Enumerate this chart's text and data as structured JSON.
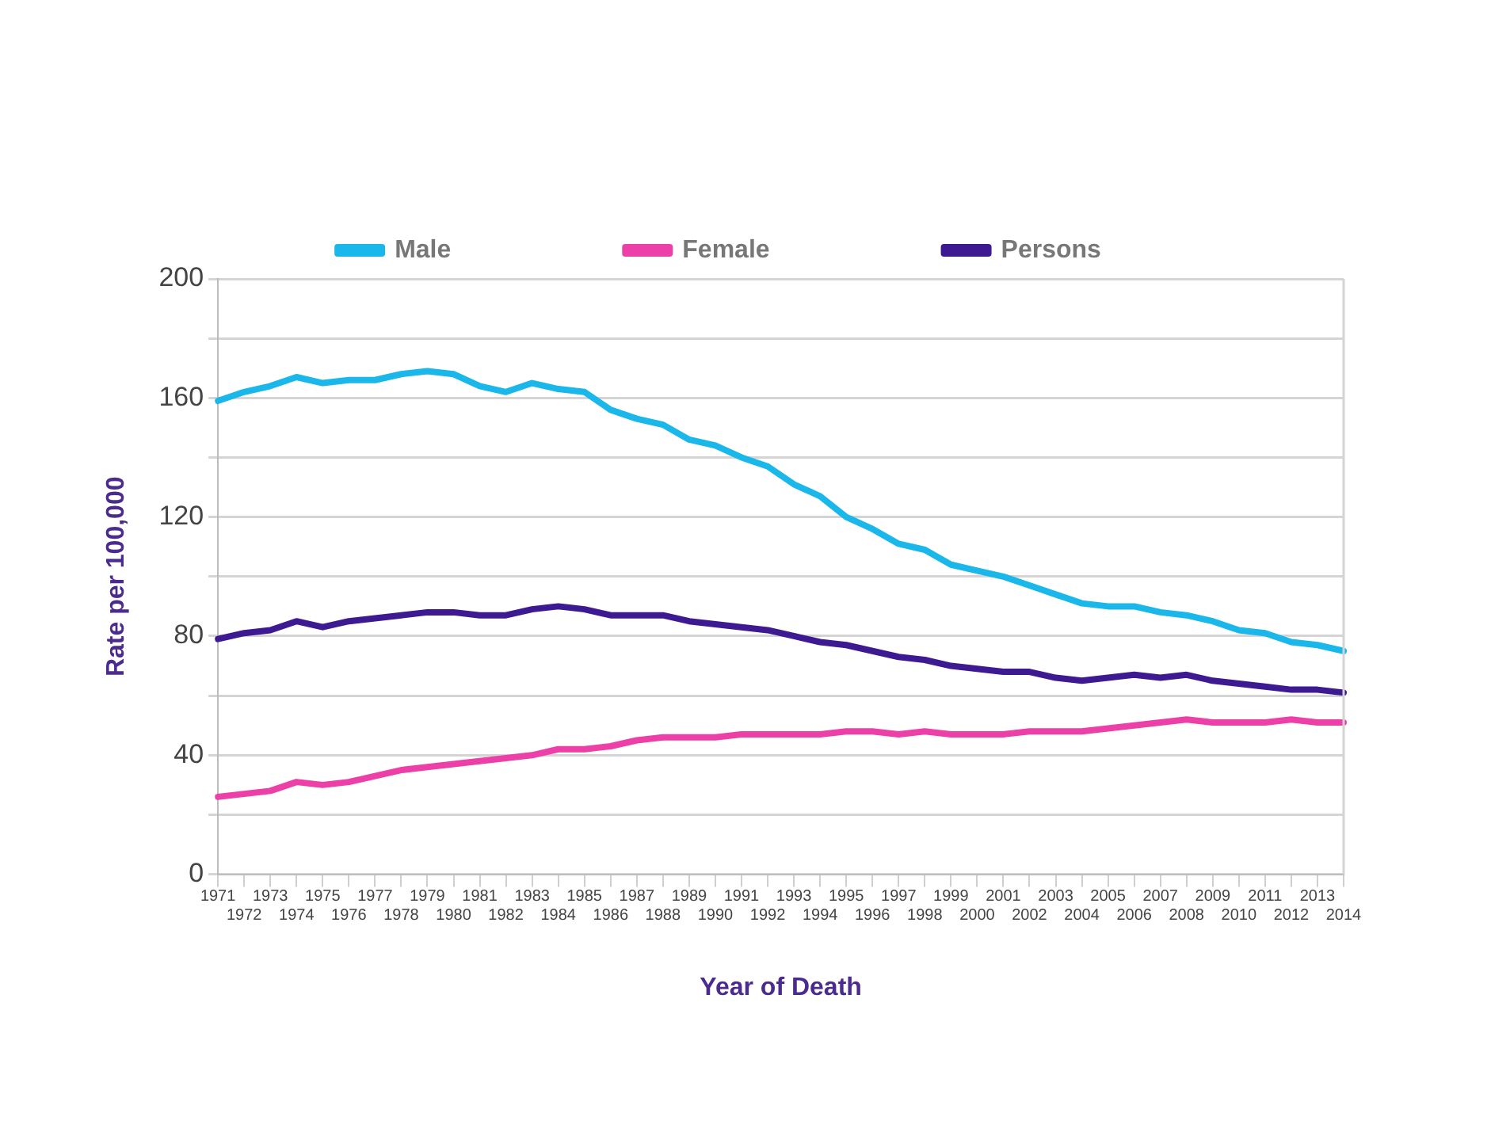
{
  "chart_data": {
    "type": "line",
    "xlabel": "Year of Death",
    "ylabel": "Rate per 100,000",
    "categories": [
      "1971",
      "1972",
      "1973",
      "1974",
      "1975",
      "1976",
      "1977",
      "1978",
      "1979",
      "1980",
      "1981",
      "1982",
      "1983",
      "1984",
      "1985",
      "1986",
      "1987",
      "1988",
      "1989",
      "1990",
      "1991",
      "1992",
      "1993",
      "1994",
      "1995",
      "1996",
      "1997",
      "1998",
      "1999",
      "2000",
      "2001",
      "2002",
      "2003",
      "2004",
      "2005",
      "2006",
      "2007",
      "2008",
      "2009",
      "2010",
      "2011",
      "2012",
      "2013",
      "2014"
    ],
    "series": [
      {
        "name": "Male",
        "color": "#1ab7ea",
        "values": [
          159,
          162,
          164,
          167,
          165,
          166,
          166,
          168,
          169,
          168,
          164,
          162,
          165,
          163,
          162,
          156,
          153,
          151,
          146,
          144,
          140,
          137,
          131,
          127,
          120,
          116,
          111,
          109,
          104,
          102,
          100,
          97,
          94,
          91,
          90,
          90,
          88,
          87,
          85,
          82,
          81,
          78,
          77,
          75
        ]
      },
      {
        "name": "Female",
        "color": "#ec3fa8",
        "values": [
          26,
          27,
          28,
          31,
          30,
          31,
          33,
          35,
          36,
          37,
          38,
          39,
          40,
          42,
          42,
          43,
          45,
          46,
          46,
          46,
          47,
          47,
          47,
          47,
          48,
          48,
          47,
          48,
          47,
          47,
          47,
          48,
          48,
          48,
          49,
          50,
          51,
          52,
          51,
          51,
          51,
          52,
          51,
          51
        ]
      },
      {
        "name": "Persons",
        "color": "#3d1a91",
        "values": [
          79,
          81,
          82,
          85,
          83,
          85,
          86,
          87,
          88,
          88,
          87,
          87,
          89,
          90,
          89,
          87,
          87,
          87,
          85,
          84,
          83,
          82,
          80,
          78,
          77,
          75,
          73,
          72,
          70,
          69,
          68,
          68,
          66,
          65,
          66,
          67,
          66,
          67,
          65,
          64,
          63,
          62,
          62,
          61
        ]
      }
    ],
    "ylim": [
      0,
      200
    ],
    "yticks": [
      0,
      {
        "value": 20,
        "label": null
      },
      40,
      {
        "value": 60,
        "label": null
      },
      80,
      {
        "value": 100,
        "label": null
      },
      120,
      {
        "value": 140,
        "label": null
      },
      160,
      {
        "value": 180,
        "label": null
      },
      200
    ],
    "grid": "y",
    "legend": "top",
    "marker": "none",
    "line_style": "solid"
  }
}
